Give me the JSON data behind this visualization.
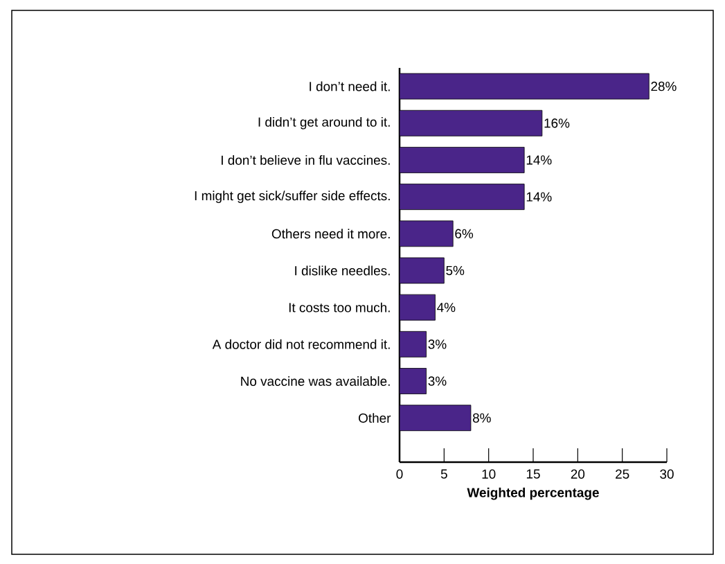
{
  "chart_data": {
    "type": "bar",
    "orientation": "horizontal",
    "categories": [
      "I don’t need it.",
      "I didn’t get around to it.",
      "I don’t believe in flu vaccines.",
      "I might get sick/suffer side effects.",
      "Others need it more.",
      "I dislike needles.",
      "It costs too much.",
      "A doctor did not recommend it.",
      "No vaccine was available.",
      "Other"
    ],
    "values": [
      28,
      16,
      14,
      14,
      6,
      5,
      4,
      3,
      3,
      8
    ],
    "value_labels": [
      "28%",
      "16%",
      "14%",
      "14%",
      "6%",
      "5%",
      "4%",
      "3%",
      "3%",
      "8%"
    ],
    "color": "#4a2589",
    "xlim": [
      0,
      30
    ],
    "xticks": [
      0,
      5,
      10,
      15,
      20,
      25,
      30
    ],
    "xlabel": "Weighted percentage",
    "grid": false
  }
}
